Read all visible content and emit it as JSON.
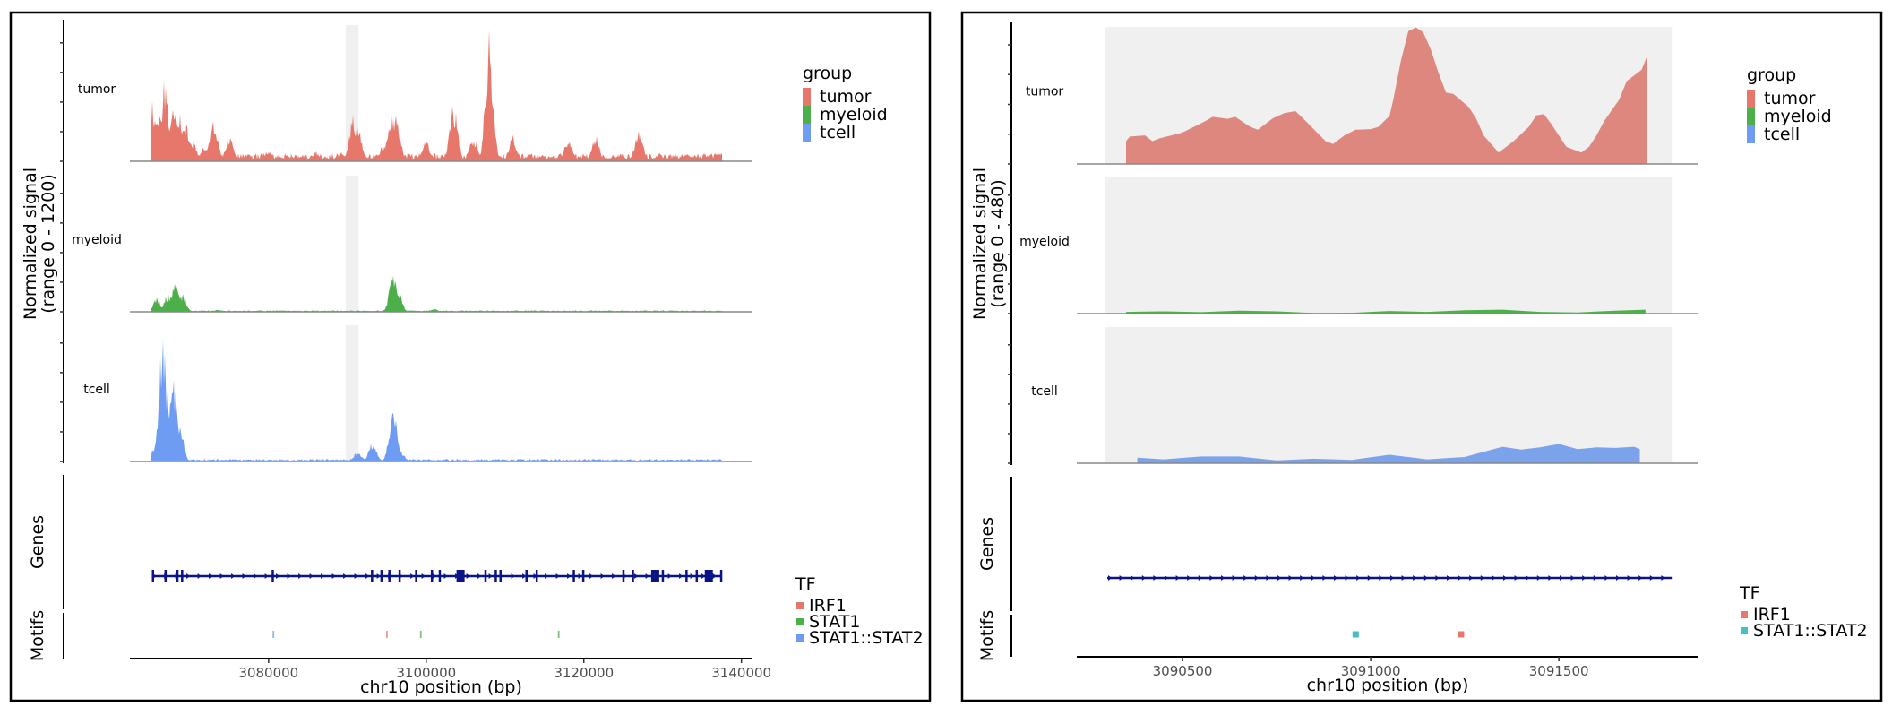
{
  "chart_data": [
    {
      "type": "area",
      "panel": "left",
      "ylabel": "Normalized signal\n(range 0 - 1200)",
      "ylabel_lines": [
        "Normalized signal",
        "(range 0 - 1200)"
      ],
      "xlabel": "chr10 position (bp)",
      "xlim": [
        3062400,
        3141400
      ],
      "ylim": [
        0,
        1200
      ],
      "x_ticks": [
        3080000,
        3100000,
        3120000,
        3140000
      ],
      "x_tick_labels": [
        "3080000",
        "3100000",
        "3120000",
        "3140000"
      ],
      "highlight_region": [
        3089800,
        3091400
      ],
      "tracks": [
        "tumor",
        "myeloid",
        "tcell"
      ],
      "series": [
        {
          "name": "tumor",
          "color": "#E8776B",
          "x_start": 3065000,
          "x_end": 3137500,
          "peaks": [
            [
              3065200,
              620
            ],
            [
              3066000,
              420
            ],
            [
              3066800,
              740
            ],
            [
              3067400,
              360
            ],
            [
              3068000,
              480
            ],
            [
              3068600,
              520
            ],
            [
              3069400,
              380
            ],
            [
              3070400,
              200
            ],
            [
              3071800,
              140
            ],
            [
              3073000,
              420
            ],
            [
              3075000,
              240
            ],
            [
              3077500,
              60
            ],
            [
              3080000,
              110
            ],
            [
              3082500,
              50
            ],
            [
              3086000,
              90
            ],
            [
              3089200,
              80
            ],
            [
              3090800,
              430
            ],
            [
              3091300,
              320
            ],
            [
              3094600,
              150
            ],
            [
              3095600,
              420
            ],
            [
              3096200,
              410
            ],
            [
              3100000,
              200
            ],
            [
              3103500,
              530
            ],
            [
              3106000,
              240
            ],
            [
              3108000,
              1160
            ],
            [
              3111000,
              240
            ],
            [
              3118000,
              230
            ],
            [
              3121500,
              230
            ],
            [
              3127000,
              300
            ],
            [
              3133000,
              70
            ],
            [
              3137300,
              80
            ]
          ],
          "baseline": 45
        },
        {
          "name": "myeloid",
          "color": "#4DAF4A",
          "x_start": 3065000,
          "x_end": 3137500,
          "peaks": [
            [
              3065800,
              130
            ],
            [
              3067200,
              160
            ],
            [
              3068200,
              280
            ],
            [
              3069000,
              170
            ],
            [
              3073500,
              20
            ],
            [
              3095800,
              320
            ],
            [
              3096400,
              190
            ],
            [
              3101000,
              30
            ]
          ],
          "baseline": 8
        },
        {
          "name": "tcell",
          "color": "#6E9CF2",
          "x_start": 3065000,
          "x_end": 3137500,
          "peaks": [
            [
              3065400,
              120
            ],
            [
              3066600,
              1200
            ],
            [
              3067200,
              600
            ],
            [
              3067900,
              820
            ],
            [
              3068600,
              420
            ],
            [
              3091300,
              90
            ],
            [
              3093200,
              180
            ],
            [
              3095800,
              500
            ],
            [
              3096600,
              120
            ]
          ],
          "baseline": 14
        }
      ],
      "genes": {
        "color": "#0A1487",
        "x_start": 3065200,
        "x_end": 3137500,
        "exons": [
          3065300,
          3066900,
          3068400,
          3069000,
          3080500,
          3093100,
          3094300,
          3095300,
          3096600,
          3098700,
          3100700,
          3101700,
          3104500,
          3107500,
          3108800,
          3109400,
          3112700,
          3114000,
          3118700,
          3119900,
          3125000,
          3126200,
          3130000,
          3133000,
          3134300,
          3136000,
          3137400
        ],
        "big_exons": [
          3104300,
          3129000,
          3135800
        ]
      },
      "motifs": [
        {
          "tf": "STAT1::STAT2",
          "pos": 3080600
        },
        {
          "tf": "IRF1",
          "pos": 3095000
        },
        {
          "tf": "STAT1",
          "pos": 3099300
        },
        {
          "tf": "STAT1",
          "pos": 3116800
        }
      ],
      "legend_group": {
        "title": "group",
        "items": [
          {
            "label": "tumor",
            "color": "#E8776B"
          },
          {
            "label": "myeloid",
            "color": "#4DAF4A"
          },
          {
            "label": "tcell",
            "color": "#6E9CF2"
          }
        ]
      },
      "legend_tf": {
        "title": "TF",
        "items": [
          {
            "label": "IRF1",
            "color": "#E8776B"
          },
          {
            "label": "STAT1",
            "color": "#4DAF4A"
          },
          {
            "label": "STAT1::STAT2",
            "color": "#6E9CF2"
          }
        ]
      },
      "side_labels": [
        "Genes",
        "Motifs"
      ]
    },
    {
      "type": "area",
      "panel": "right",
      "ylabel": "Normalized signal\n(range 0 - 480)",
      "ylabel_lines": [
        "Normalized signal",
        "(range 0 - 480)"
      ],
      "xlabel": "chr10 position (bp)",
      "xlim": [
        3090219,
        3091871
      ],
      "ylim": [
        0,
        480
      ],
      "x_ticks": [
        3090500,
        3091000,
        3091500
      ],
      "x_tick_labels": [
        "3090500",
        "3091000",
        "3091500"
      ],
      "highlight_region": [
        3090295,
        3091800
      ],
      "tracks": [
        "tumor",
        "myeloid",
        "tcell"
      ],
      "series": [
        {
          "name": "tumor",
          "color": "#DE877F",
          "x": [
            3090350,
            3090360,
            3090400,
            3090420,
            3090440,
            3090470,
            3090500,
            3090560,
            3090580,
            3090620,
            3090640,
            3090680,
            3090700,
            3090740,
            3090770,
            3090800,
            3090820,
            3090850,
            3090880,
            3090900,
            3090930,
            3090960,
            3091000,
            3091020,
            3091050,
            3091060,
            3091080,
            3091100,
            3091120,
            3091130,
            3091140,
            3091160,
            3091180,
            3091200,
            3091220,
            3091260,
            3091280,
            3091300,
            3091340,
            3091360,
            3091380,
            3091420,
            3091440,
            3091460,
            3091480,
            3091500,
            3091520,
            3091560,
            3091580,
            3091600,
            3091620,
            3091660,
            3091680,
            3091720,
            3091735
          ],
          "y": [
            80,
            96,
            100,
            80,
            90,
            100,
            110,
            150,
            165,
            158,
            165,
            130,
            120,
            160,
            178,
            185,
            160,
            120,
            80,
            70,
            100,
            120,
            122,
            130,
            168,
            225,
            360,
            465,
            478,
            470,
            460,
            400,
            320,
            250,
            245,
            200,
            160,
            100,
            40,
            60,
            80,
            130,
            170,
            175,
            140,
            100,
            60,
            40,
            60,
            100,
            150,
            225,
            290,
            330,
            380
          ],
          "y_tail": [
            325,
            328,
            350,
            340,
            320,
            270
          ]
        },
        {
          "name": "myeloid",
          "color": "#4DAF4A",
          "x": [
            3090350,
            3090450,
            3090550,
            3090650,
            3090750,
            3090850,
            3090950,
            3091050,
            3091150,
            3091250,
            3091350,
            3091450,
            3091550,
            3091650,
            3091730
          ],
          "y": [
            6,
            8,
            5,
            10,
            8,
            2,
            3,
            9,
            6,
            12,
            14,
            6,
            4,
            10,
            14
          ]
        },
        {
          "name": "tcell",
          "color": "#7BA3EC",
          "x": [
            3090380,
            3090450,
            3090550,
            3090650,
            3090750,
            3090850,
            3090950,
            3091050,
            3091150,
            3091200,
            3091250,
            3091300,
            3091350,
            3091400,
            3091450,
            3091500,
            3091550,
            3091600,
            3091650,
            3091700,
            3091715
          ],
          "y": [
            20,
            14,
            24,
            24,
            10,
            16,
            12,
            30,
            14,
            18,
            22,
            40,
            58,
            48,
            56,
            68,
            50,
            56,
            54,
            58,
            50
          ]
        }
      ],
      "genes": {
        "color": "#0A1487",
        "x_start": 3090300,
        "x_end": 3091800,
        "exons": [],
        "big_exons": []
      },
      "motifs": [
        {
          "tf": "STAT1::STAT2",
          "pos": 3090960
        },
        {
          "tf": "IRF1",
          "pos": 3091240
        }
      ],
      "legend_group": {
        "title": "group",
        "items": [
          {
            "label": "tumor",
            "color": "#E8776B"
          },
          {
            "label": "myeloid",
            "color": "#4DAF4A"
          },
          {
            "label": "tcell",
            "color": "#6E9CF2"
          }
        ]
      },
      "legend_tf": {
        "title": "TF",
        "items": [
          {
            "label": "IRF1",
            "color": "#E8776B"
          },
          {
            "label": "STAT1::STAT2",
            "color": "#45BEC4"
          }
        ]
      },
      "side_labels": [
        "Genes",
        "Motifs"
      ]
    }
  ]
}
